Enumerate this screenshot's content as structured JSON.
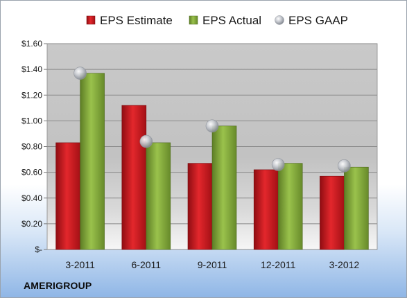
{
  "brand": "AMERIGROUP",
  "chart_data": {
    "type": "bar",
    "categories": [
      "3-2011",
      "6-2011",
      "9-2011",
      "12-2011",
      "3-2012"
    ],
    "series": [
      {
        "name": "EPS Estimate",
        "kind": "bar",
        "color": "#c0161d",
        "values": [
          0.83,
          1.12,
          0.67,
          0.62,
          0.57
        ]
      },
      {
        "name": "EPS Actual",
        "kind": "bar",
        "color": "#7ea33a",
        "values": [
          1.37,
          0.83,
          0.96,
          0.67,
          0.64
        ]
      },
      {
        "name": "EPS GAAP",
        "kind": "scatter",
        "color": "#b8bcc4",
        "values": [
          1.37,
          0.84,
          0.96,
          0.66,
          0.65
        ]
      }
    ],
    "ylim": [
      0,
      1.6
    ],
    "yticks": [
      {
        "value": 0,
        "label": "$-"
      },
      {
        "value": 0.2,
        "label": "$0.20"
      },
      {
        "value": 0.4,
        "label": "$0.40"
      },
      {
        "value": 0.6,
        "label": "$0.60"
      },
      {
        "value": 0.8,
        "label": "$0.80"
      },
      {
        "value": 1.0,
        "label": "$1.00"
      },
      {
        "value": 1.2,
        "label": "$1.20"
      },
      {
        "value": 1.4,
        "label": "$1.40"
      },
      {
        "value": 1.6,
        "label": "$1.60"
      }
    ],
    "grid": true,
    "legend_position": "top"
  }
}
